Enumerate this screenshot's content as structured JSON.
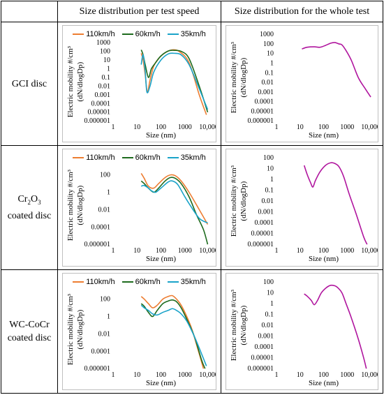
{
  "header": {
    "corner": "",
    "col1": "Size distribution per test speed",
    "col2": "Size distribution for the whole test"
  },
  "rows": [
    {
      "label_line1": "GCI disc",
      "label_line1_sub": "",
      "label_line1_tail": "",
      "label_line2": ""
    },
    {
      "label_line1": "Cr",
      "label_line1_sub": "2",
      "label_line1_mid": "O",
      "label_line1_sub2": "3",
      "label_line2": "coated disc"
    },
    {
      "label_line1": "WC-CoCr",
      "label_line2": "coated disc"
    }
  ],
  "colors": {
    "s110": "#ed7d31",
    "s60": "#1e6b1e",
    "s35": "#1aa3c9",
    "whole": "#b0159e"
  },
  "chart_data": [
    {
      "type": "line",
      "panel": "gci-per-speed",
      "xlabel": "Size (nm)",
      "ylabel": "Electric mobility #/cm³ (dN/dlogDp)",
      "xscale": "log",
      "yscale": "log",
      "xlim": [
        1,
        10000
      ],
      "ylim": [
        1e-06,
        1000
      ],
      "xticks": [
        "1",
        "10",
        "100",
        "1000",
        "10,000"
      ],
      "yticks": [
        "1000",
        "100",
        "10",
        "1",
        "0.1",
        "0.01",
        "0.001",
        "0.0001",
        "0.00001",
        "0.000001"
      ],
      "legend": "top",
      "grid": false,
      "series": [
        {
          "name": "110km/h",
          "color": "#ed7d31",
          "x": [
            15,
            18,
            22,
            27,
            35,
            50,
            80,
            150,
            300,
            600,
            1500,
            4000,
            8000
          ],
          "y": [
            60,
            10,
            0.2,
            0.002,
            0.05,
            2,
            15,
            70,
            150,
            90,
            5,
            0.001,
            5e-06
          ]
        },
        {
          "name": "60km/h",
          "color": "#1e6b1e",
          "x": [
            15,
            18,
            22,
            30,
            40,
            60,
            100,
            200,
            350,
            700,
            1500,
            4000,
            9000
          ],
          "y": [
            150,
            40,
            3,
            0.1,
            1,
            5,
            30,
            110,
            130,
            100,
            15,
            0.01,
            1e-05
          ]
        },
        {
          "name": "35km/h",
          "color": "#1aa3c9",
          "x": [
            15,
            18,
            22,
            26,
            35,
            50,
            100,
            200,
            350,
            700,
            1500,
            4000,
            9000
          ],
          "y": [
            3,
            40,
            0.5,
            0.002,
            0.01,
            0.4,
            10,
            50,
            60,
            40,
            3,
            0.005,
            2e-05
          ]
        }
      ]
    },
    {
      "type": "line",
      "panel": "gci-whole",
      "xlabel": "Size (nm)",
      "ylabel": "Electric mobility #/cm³ (dN/dlogDp)",
      "xscale": "log",
      "yscale": "log",
      "xlim": [
        1,
        10000
      ],
      "ylim": [
        1e-06,
        1000
      ],
      "xticks": [
        "1",
        "10",
        "100",
        "1000",
        "10,000"
      ],
      "yticks": [
        "1000",
        "100",
        "10",
        "1",
        "0.1",
        "0.01",
        "0.001",
        "0.0001",
        "0.00001",
        "0.000001"
      ],
      "grid": false,
      "series": [
        {
          "name": "",
          "color": "#b0159e",
          "x": [
            12,
            20,
            40,
            70,
            120,
            200,
            300,
            450,
            600,
            900,
            1500,
            3000,
            6000,
            10000
          ],
          "y": [
            30,
            45,
            50,
            45,
            70,
            120,
            140,
            100,
            80,
            20,
            2,
            0.03,
            0.002,
            0.0003
          ]
        }
      ]
    },
    {
      "type": "line",
      "panel": "cr2o3-per-speed",
      "xlabel": "Size (nm)",
      "ylabel": "Electric mobility #/cm³ (dN/dlogDp)",
      "xscale": "log",
      "yscale": "log",
      "xlim": [
        1,
        10000
      ],
      "ylim": [
        1e-06,
        1000
      ],
      "xticks": [
        "1",
        "10",
        "100",
        "1000",
        "10,000"
      ],
      "yticks": [
        "100",
        "1",
        "0.01",
        "0.0001",
        "0.000001"
      ],
      "legend": "top",
      "grid": false,
      "series": [
        {
          "name": "110km/h",
          "color": "#ed7d31",
          "x": [
            15,
            20,
            30,
            50,
            80,
            150,
            250,
            400,
            700,
            1500,
            4000,
            9000
          ],
          "y": [
            150,
            40,
            5,
            3,
            10,
            50,
            100,
            80,
            20,
            1,
            0.01,
            0.0002
          ]
        },
        {
          "name": "60km/h",
          "color": "#1e6b1e",
          "x": [
            15,
            20,
            30,
            50,
            80,
            150,
            250,
            400,
            700,
            1500,
            3000,
            6000,
            9000
          ],
          "y": [
            20,
            10,
            3,
            1,
            3,
            20,
            50,
            40,
            10,
            0.3,
            0.003,
            5e-05,
            1e-06
          ]
        },
        {
          "name": "35km/h",
          "color": "#1aa3c9",
          "x": [
            15,
            20,
            30,
            40,
            60,
            100,
            200,
            300,
            500,
            900,
            1500,
            4000,
            9000
          ],
          "y": [
            5,
            6,
            3,
            1.5,
            1,
            3,
            15,
            20,
            8,
            0.5,
            0.05,
            0.001,
            0.0003
          ]
        }
      ]
    },
    {
      "type": "line",
      "panel": "cr2o3-whole",
      "xlabel": "Size (nm)",
      "ylabel": "Electric mobility #/cm³ (dN/dlogDp)",
      "xscale": "log",
      "yscale": "log",
      "xlim": [
        1,
        10000
      ],
      "ylim": [
        1e-06,
        100
      ],
      "xticks": [
        "1",
        "10",
        "100",
        "1000",
        "10,000"
      ],
      "yticks": [
        "100",
        "10",
        "1",
        "0.1",
        "0.01",
        "0.001",
        "0.0001",
        "0.00001",
        "0.000001"
      ],
      "grid": false,
      "series": [
        {
          "name": "",
          "color": "#b0159e",
          "x": [
            15,
            20,
            28,
            35,
            45,
            70,
            120,
            200,
            300,
            450,
            700,
            1200,
            2500,
            5000,
            7000
          ],
          "y": [
            20,
            3,
            0.5,
            0.2,
            0.8,
            5,
            20,
            35,
            30,
            15,
            2,
            0.05,
            0.0005,
            5e-06,
            1e-06
          ]
        }
      ]
    },
    {
      "type": "line",
      "panel": "wccocr-per-speed",
      "xlabel": "Size (nm)",
      "ylabel": "Electric mobility #/cm³ (dN/dlogDp)",
      "xscale": "log",
      "yscale": "log",
      "xlim": [
        1,
        10000
      ],
      "ylim": [
        1e-06,
        1000
      ],
      "xticks": [
        "1",
        "10",
        "100",
        "1000",
        "10,000"
      ],
      "yticks": [
        "100",
        "1",
        "0.01",
        "0.0001",
        "0.000001"
      ],
      "legend": "top",
      "grid": false,
      "series": [
        {
          "name": "110km/h",
          "color": "#ed7d31",
          "x": [
            15,
            20,
            30,
            45,
            70,
            120,
            200,
            300,
            450,
            700,
            1200,
            2000,
            4000,
            6000
          ],
          "y": [
            200,
            100,
            30,
            10,
            20,
            100,
            200,
            250,
            100,
            20,
            1,
            0.03,
            5e-05,
            1e-06
          ]
        },
        {
          "name": "60km/h",
          "color": "#1e6b1e",
          "x": [
            15,
            20,
            30,
            45,
            70,
            120,
            200,
            300,
            450,
            700,
            1200,
            2500,
            5000,
            7000
          ],
          "y": [
            30,
            15,
            3,
            1,
            5,
            30,
            60,
            80,
            50,
            10,
            0.5,
            0.005,
            1e-05,
            1e-06
          ]
        },
        {
          "name": "35km/h",
          "color": "#1aa3c9",
          "x": [
            15,
            20,
            30,
            45,
            70,
            120,
            200,
            300,
            450,
            700,
            1200,
            2500,
            5000,
            8000
          ],
          "y": [
            20,
            10,
            5,
            2,
            1.5,
            3,
            5,
            8,
            5,
            2,
            0.3,
            0.005,
            5e-05,
            2e-06
          ]
        }
      ]
    },
    {
      "type": "line",
      "panel": "wccocr-whole",
      "xlabel": "Size (nm)",
      "ylabel": "Electric mobility #/cm³ (dN/dlogDp)",
      "xscale": "log",
      "yscale": "log",
      "xlim": [
        1,
        10000
      ],
      "ylim": [
        1e-06,
        100
      ],
      "xticks": [
        "1",
        "10",
        "100",
        "1000",
        "10,000"
      ],
      "yticks": [
        "100",
        "10",
        "1",
        "0.1",
        "0.01",
        "0.001",
        "0.0001",
        "0.00001",
        "0.000001"
      ],
      "grid": false,
      "series": [
        {
          "name": "",
          "color": "#b0159e",
          "x": [
            15,
            20,
            30,
            40,
            55,
            80,
            130,
            200,
            300,
            400,
            600,
            900,
            1500,
            3000,
            5000,
            6500
          ],
          "y": [
            8,
            5,
            2,
            0.8,
            2,
            10,
            30,
            50,
            45,
            30,
            10,
            1,
            0.05,
            0.0005,
            1e-05,
            1e-06
          ]
        }
      ]
    }
  ]
}
